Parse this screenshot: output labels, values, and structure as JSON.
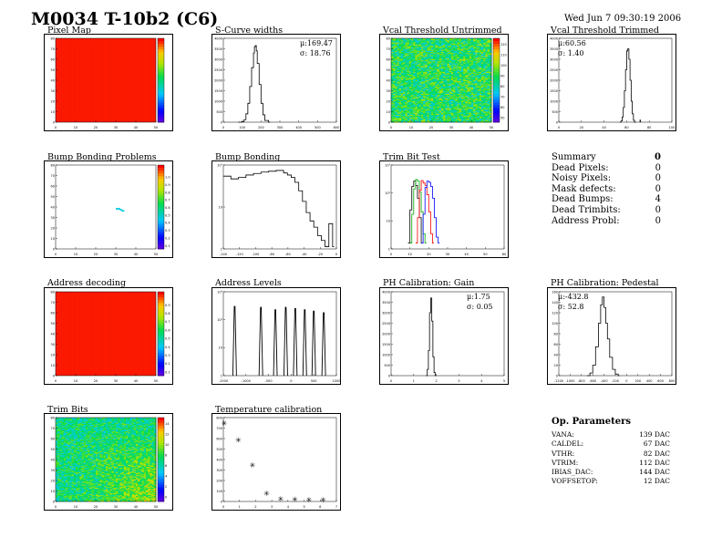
{
  "title": "M0034 T-10b2 (C6)",
  "date": "Wed Jun  7 09:30:19 2006",
  "panels": [
    {
      "id": "pixel_map",
      "label": "Pixel Map"
    },
    {
      "id": "scurve_widths",
      "label": "S-Curve widths",
      "stats": [
        "μ:169.47",
        "σ: 18.76"
      ]
    },
    {
      "id": "vcal_untrimmed",
      "label": "Vcal Threshold Untrimmed"
    },
    {
      "id": "vcal_trimmed",
      "label": "Vcal Threshold Trimmed",
      "stats": [
        "μ:60.56",
        "σ: 1.40"
      ]
    },
    {
      "id": "bump_problems",
      "label": "Bump Bonding Problems"
    },
    {
      "id": "bump_bonding",
      "label": "Bump Bonding"
    },
    {
      "id": "trim_bit_test",
      "label": "Trim Bit Test"
    },
    {
      "id": "address_decoding",
      "label": "Address decoding"
    },
    {
      "id": "address_levels",
      "label": "Address Levels"
    },
    {
      "id": "ph_gain",
      "label": "PH Calibration: Gain",
      "stats": [
        "μ:1.75",
        "σ: 0.05"
      ]
    },
    {
      "id": "ph_pedestal",
      "label": "PH Calibration: Pedestal",
      "stats": [
        "μ:-432.8",
        "σ: 52.8"
      ]
    },
    {
      "id": "trim_bits",
      "label": "Trim Bits"
    },
    {
      "id": "temp_calib",
      "label": "Temperature calibration"
    }
  ],
  "summary": {
    "header": "Summary",
    "header_value": "0",
    "rows": [
      {
        "label": "Dead Pixels:",
        "value": "0"
      },
      {
        "label": "Noisy Pixels:",
        "value": "0"
      },
      {
        "label": "Mask defects:",
        "value": "0"
      },
      {
        "label": "Dead Bumps:",
        "value": "4"
      },
      {
        "label": "Dead Trimbits:",
        "value": "0"
      },
      {
        "label": "Address Probl:",
        "value": "0"
      }
    ]
  },
  "op_params": {
    "header": "Op. Parameters",
    "rows": [
      {
        "name": "VANA:",
        "value": "139 DAC"
      },
      {
        "name": "CALDEL:",
        "value": "67 DAC"
      },
      {
        "name": "VTHR:",
        "value": "82 DAC"
      },
      {
        "name": "VTRIM:",
        "value": "112 DAC"
      },
      {
        "name": "IBIAS_DAC:",
        "value": "144 DAC"
      },
      {
        "name": "VOFFSETOP:",
        "value": "12 DAC"
      }
    ]
  },
  "chart_data": [
    {
      "id": "pixel_map",
      "type": "heatmap",
      "fill": "uniform",
      "xlim": [
        0,
        50
      ],
      "ylim": [
        0,
        80
      ],
      "xticks": [
        "0",
        "10",
        "20",
        "30",
        "40",
        "50"
      ],
      "yticks": [
        "0",
        "10",
        "20",
        "30",
        "40",
        "50",
        "60",
        "70",
        "80"
      ],
      "zticks": [
        "",
        "",
        "",
        "",
        "",
        "",
        "",
        "",
        "",
        ""
      ]
    },
    {
      "id": "scurve_widths",
      "type": "bar",
      "xlim": [
        0,
        600
      ],
      "ylim": [
        0,
        4000
      ],
      "xticks": [
        "0",
        "100",
        "200",
        "300",
        "400",
        "500",
        "600"
      ],
      "yticks": [
        "0",
        "500",
        "1000",
        "1500",
        "2000",
        "2500",
        "3000",
        "3500",
        "4000"
      ],
      "x": [
        80,
        100,
        110,
        120,
        130,
        140,
        150,
        160,
        165,
        170,
        175,
        180,
        190,
        200,
        210,
        220,
        240
      ],
      "y": [
        0,
        30,
        120,
        400,
        900,
        1700,
        2600,
        3300,
        3600,
        3650,
        3400,
        2800,
        1800,
        900,
        350,
        80,
        0
      ]
    },
    {
      "id": "vcal_untrimmed",
      "type": "heatmap",
      "fill": "noise",
      "xlim": [
        0,
        50
      ],
      "ylim": [
        0,
        80
      ],
      "xticks": [
        "0",
        "10",
        "20",
        "30",
        "40",
        "50"
      ],
      "yticks": [
        "0",
        "10",
        "20",
        "30",
        "40",
        "50",
        "60",
        "70",
        "80"
      ],
      "zticks": [
        "120",
        "110",
        "100",
        "90",
        "80",
        "70",
        "60",
        "50"
      ]
    },
    {
      "id": "vcal_trimmed",
      "type": "bar",
      "xlim": [
        0,
        100
      ],
      "ylim": [
        0,
        4000
      ],
      "xticks": [
        "0",
        "20",
        "40",
        "60",
        "80",
        "100"
      ],
      "yticks": [
        "0",
        "500",
        "1000",
        "1500",
        "2000",
        "2500",
        "3000",
        "3500",
        "4000"
      ],
      "x": [
        54,
        55,
        56,
        57,
        58,
        59,
        60,
        61,
        62,
        63,
        64,
        65,
        66,
        67
      ],
      "y": [
        0,
        60,
        250,
        700,
        1500,
        2500,
        3400,
        3500,
        3000,
        2000,
        1000,
        400,
        90,
        0
      ],
      "outlier": {
        "x": 72,
        "y": 120
      }
    },
    {
      "id": "bump_problems",
      "type": "heatmap",
      "fill": "sparse",
      "xlim": [
        0,
        50
      ],
      "ylim": [
        0,
        80
      ],
      "xticks": [
        "0",
        "10",
        "20",
        "30",
        "40",
        "50"
      ],
      "yticks": [
        "0",
        "10",
        "20",
        "30",
        "40",
        "50",
        "60",
        "70",
        "80"
      ],
      "zticks": [
        "",
        "1.0",
        "0.9",
        "0.8",
        "0.7",
        "0.6",
        "0.5",
        "0.4",
        "0.3",
        "0.2",
        "0.1"
      ],
      "points": [
        [
          30,
          39
        ],
        [
          31,
          39
        ],
        [
          32,
          38
        ],
        [
          33,
          37
        ]
      ]
    },
    {
      "id": "bump_bonding",
      "type": "line",
      "log_y": true,
      "xlim": [
        -140,
        10
      ],
      "ylim": [
        0.5,
        500
      ],
      "xticks": [
        "-140",
        "-120",
        "-100",
        "-80",
        "-60",
        "-40",
        "-20",
        "0"
      ],
      "yticks": [
        "1",
        "10",
        "10²"
      ],
      "x": [
        -140,
        -130,
        -120,
        -110,
        -100,
        -90,
        -80,
        -70,
        -60,
        -55,
        -50,
        -45,
        -40,
        -35,
        -30,
        -25,
        -20,
        -15,
        -10,
        -5,
        0,
        5
      ],
      "y": [
        200,
        160,
        180,
        220,
        250,
        280,
        300,
        320,
        260,
        220,
        180,
        120,
        60,
        25,
        10,
        5,
        3,
        1.5,
        1,
        0.6,
        4,
        0.6
      ]
    },
    {
      "id": "trim_bit_test",
      "type": "line",
      "log_y": true,
      "xlim": [
        0,
        60
      ],
      "ylim": [
        0.5,
        10000
      ],
      "xticks": [
        "0",
        "10",
        "20",
        "30",
        "40",
        "50",
        "60"
      ],
      "yticks": [
        "1",
        "10",
        "10²",
        "10³"
      ],
      "series": [
        {
          "color": "#000000",
          "x": [
            9,
            10,
            11,
            12,
            13,
            14,
            15,
            16
          ],
          "y": [
            1,
            50,
            800,
            1500,
            900,
            200,
            20,
            1
          ]
        },
        {
          "color": "#00aa00",
          "x": [
            10,
            11,
            12,
            13,
            14,
            15,
            16,
            17,
            18
          ],
          "y": [
            1,
            30,
            600,
            1800,
            1500,
            400,
            40,
            3,
            1
          ]
        },
        {
          "color": "#ff0000",
          "x": [
            13,
            14,
            15,
            16,
            17,
            18,
            19,
            20,
            21,
            22
          ],
          "y": [
            1,
            20,
            500,
            1600,
            1200,
            900,
            300,
            40,
            3,
            1
          ]
        },
        {
          "color": "#0000ff",
          "x": [
            16,
            17,
            18,
            19,
            20,
            21,
            22,
            23,
            24,
            25
          ],
          "y": [
            1,
            30,
            700,
            1500,
            1300,
            800,
            200,
            20,
            2,
            1
          ]
        }
      ]
    },
    {
      "id": "address_decoding",
      "type": "heatmap",
      "fill": "uniform",
      "xlim": [
        0,
        50
      ],
      "ylim": [
        0,
        80
      ],
      "xticks": [
        "0",
        "10",
        "20",
        "30",
        "40",
        "50"
      ],
      "yticks": [
        "0",
        "10",
        "20",
        "30",
        "40",
        "50",
        "60",
        "70",
        "80"
      ],
      "zticks": [
        "",
        "0.9",
        "0.8",
        "0.7",
        "0.6",
        "0.5",
        "0.4",
        "0.3",
        "0.2",
        "0.1"
      ]
    },
    {
      "id": "address_levels",
      "type": "bar",
      "log_y": true,
      "xlim": [
        -1500,
        1000
      ],
      "ylim": [
        0.5,
        5000
      ],
      "xticks": [
        "-1500",
        "-1000",
        "-500",
        "0",
        "500",
        "1000"
      ],
      "yticks": [
        "1",
        "10",
        "10²",
        "10³"
      ],
      "peaks": [
        -1250,
        -670,
        -350,
        -120,
        90,
        300,
        500,
        720
      ],
      "heights": [
        1000,
        900,
        700,
        900,
        800,
        700,
        600,
        500
      ]
    },
    {
      "id": "ph_gain",
      "type": "bar",
      "xlim": [
        0,
        5
      ],
      "ylim": [
        0,
        4000
      ],
      "xticks": [
        "0",
        "1",
        "2",
        "3",
        "4",
        "5"
      ],
      "yticks": [
        "0",
        "500",
        "1000",
        "1500",
        "2000",
        "2500",
        "3000",
        "3500",
        "4000"
      ],
      "x": [
        1.55,
        1.6,
        1.65,
        1.7,
        1.75,
        1.8,
        1.85,
        1.9,
        1.95
      ],
      "y": [
        0,
        300,
        1200,
        3000,
        3700,
        2600,
        900,
        150,
        0
      ]
    },
    {
      "id": "ph_pedestal",
      "type": "line",
      "xlim": [
        -1200,
        800
      ],
      "ylim": [
        0,
        160
      ],
      "xticks": [
        "-1200",
        "-1000",
        "-800",
        "-600",
        "-400",
        "-200",
        "0",
        "200",
        "400",
        "600",
        "800"
      ],
      "yticks": [
        "0",
        "20",
        "40",
        "60",
        "80",
        "100",
        "120",
        "140",
        "160"
      ],
      "x": [
        -700,
        -650,
        -600,
        -550,
        -500,
        -460,
        -430,
        -400,
        -370,
        -340,
        -300,
        -250,
        -200,
        -150
      ],
      "y": [
        0,
        5,
        20,
        55,
        100,
        135,
        150,
        130,
        100,
        70,
        35,
        12,
        3,
        0
      ]
    },
    {
      "id": "trim_bits",
      "type": "heatmap",
      "fill": "noise2",
      "xlim": [
        0,
        50
      ],
      "ylim": [
        0,
        80
      ],
      "xticks": [
        "0",
        "10",
        "20",
        "30",
        "40",
        "50"
      ],
      "yticks": [
        "0",
        "10",
        "20",
        "30",
        "40",
        "50",
        "60",
        "70",
        "80"
      ],
      "zticks": [
        "14",
        "12",
        "10",
        "8",
        "6",
        "4",
        "2",
        "0"
      ]
    },
    {
      "id": "temp_calib",
      "type": "scatter",
      "xlim": [
        0,
        8
      ],
      "ylim": [
        0,
        900
      ],
      "xticks": [
        "0",
        "1",
        "2",
        "3",
        "4",
        "5",
        "6",
        "7"
      ],
      "yticks": [
        "0",
        "100",
        "200",
        "300",
        "400",
        "500",
        "600",
        "700",
        "800"
      ],
      "x": [
        0,
        1,
        2,
        3,
        4,
        5,
        6,
        7
      ],
      "y": [
        840,
        660,
        390,
        90,
        30,
        25,
        20,
        20
      ]
    }
  ]
}
